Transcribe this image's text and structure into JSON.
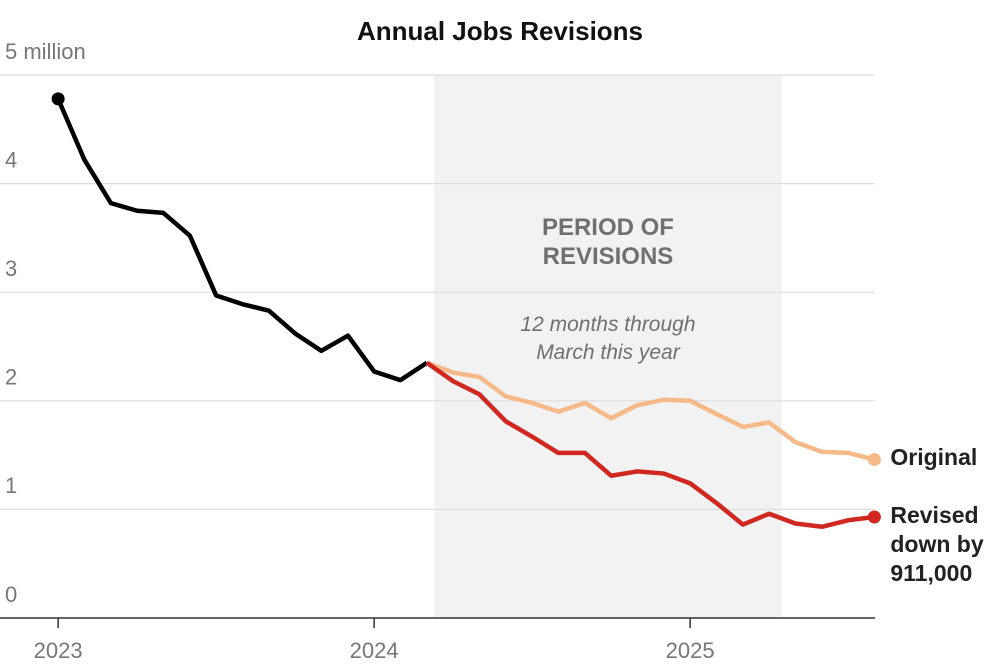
{
  "chart_data": {
    "type": "line",
    "title": "Annual Jobs Revisions",
    "x": [
      2023,
      2023.083,
      2023.167,
      2023.25,
      2023.333,
      2023.417,
      2023.5,
      2023.583,
      2023.667,
      2023.75,
      2023.833,
      2023.917,
      2024,
      2024.083,
      2024.167,
      2024.25,
      2024.333,
      2024.417,
      2024.5,
      2024.583,
      2024.667,
      2024.75,
      2024.833,
      2024.917,
      2025,
      2025.083,
      2025.167,
      2025.25,
      2025.333,
      2025.417,
      2025.5,
      2025.583
    ],
    "series": [
      {
        "color": "#000000",
        "values": [
          4.78,
          4.22,
          3.82,
          3.75,
          3.73,
          3.52,
          2.97,
          2.89,
          2.83,
          2.62,
          2.46,
          2.6,
          2.27,
          2.19,
          2.35,
          null,
          null,
          null,
          null,
          null,
          null,
          null,
          null,
          null,
          null,
          null,
          null,
          null,
          null,
          null,
          null,
          null
        ],
        "start_dot": true
      },
      {
        "name": "Original",
        "color": "#f6b987",
        "values": [
          null,
          null,
          null,
          null,
          null,
          null,
          null,
          null,
          null,
          null,
          null,
          null,
          null,
          null,
          2.35,
          2.26,
          2.22,
          2.04,
          1.98,
          1.9,
          1.98,
          1.84,
          1.96,
          2.01,
          2.0,
          1.88,
          1.76,
          1.8,
          1.62,
          1.53,
          1.52,
          1.46
        ],
        "end_dot": true
      },
      {
        "name": "Revised down by 911,000",
        "color": "#d0281f",
        "values": [
          null,
          null,
          null,
          null,
          null,
          null,
          null,
          null,
          null,
          null,
          null,
          null,
          null,
          null,
          2.35,
          2.18,
          2.06,
          1.81,
          1.67,
          1.52,
          1.52,
          1.31,
          1.35,
          1.33,
          1.24,
          1.06,
          0.86,
          0.96,
          0.87,
          0.84,
          0.9,
          0.93
        ],
        "end_dot": true
      }
    ],
    "highlight": {
      "x": [
        2024.19,
        2025.29
      ],
      "label": "PERIOD OF REVISIONS",
      "note": "12 months through March this year"
    },
    "xlim": [
      2022.816,
      2025.585
    ],
    "xticks": [
      2023,
      2024,
      2025
    ],
    "ylim": [
      0,
      5
    ],
    "yticks": [
      0,
      1,
      2,
      3,
      4,
      {
        "value": 5,
        "label": "5 million"
      }
    ],
    "grid": true
  }
}
